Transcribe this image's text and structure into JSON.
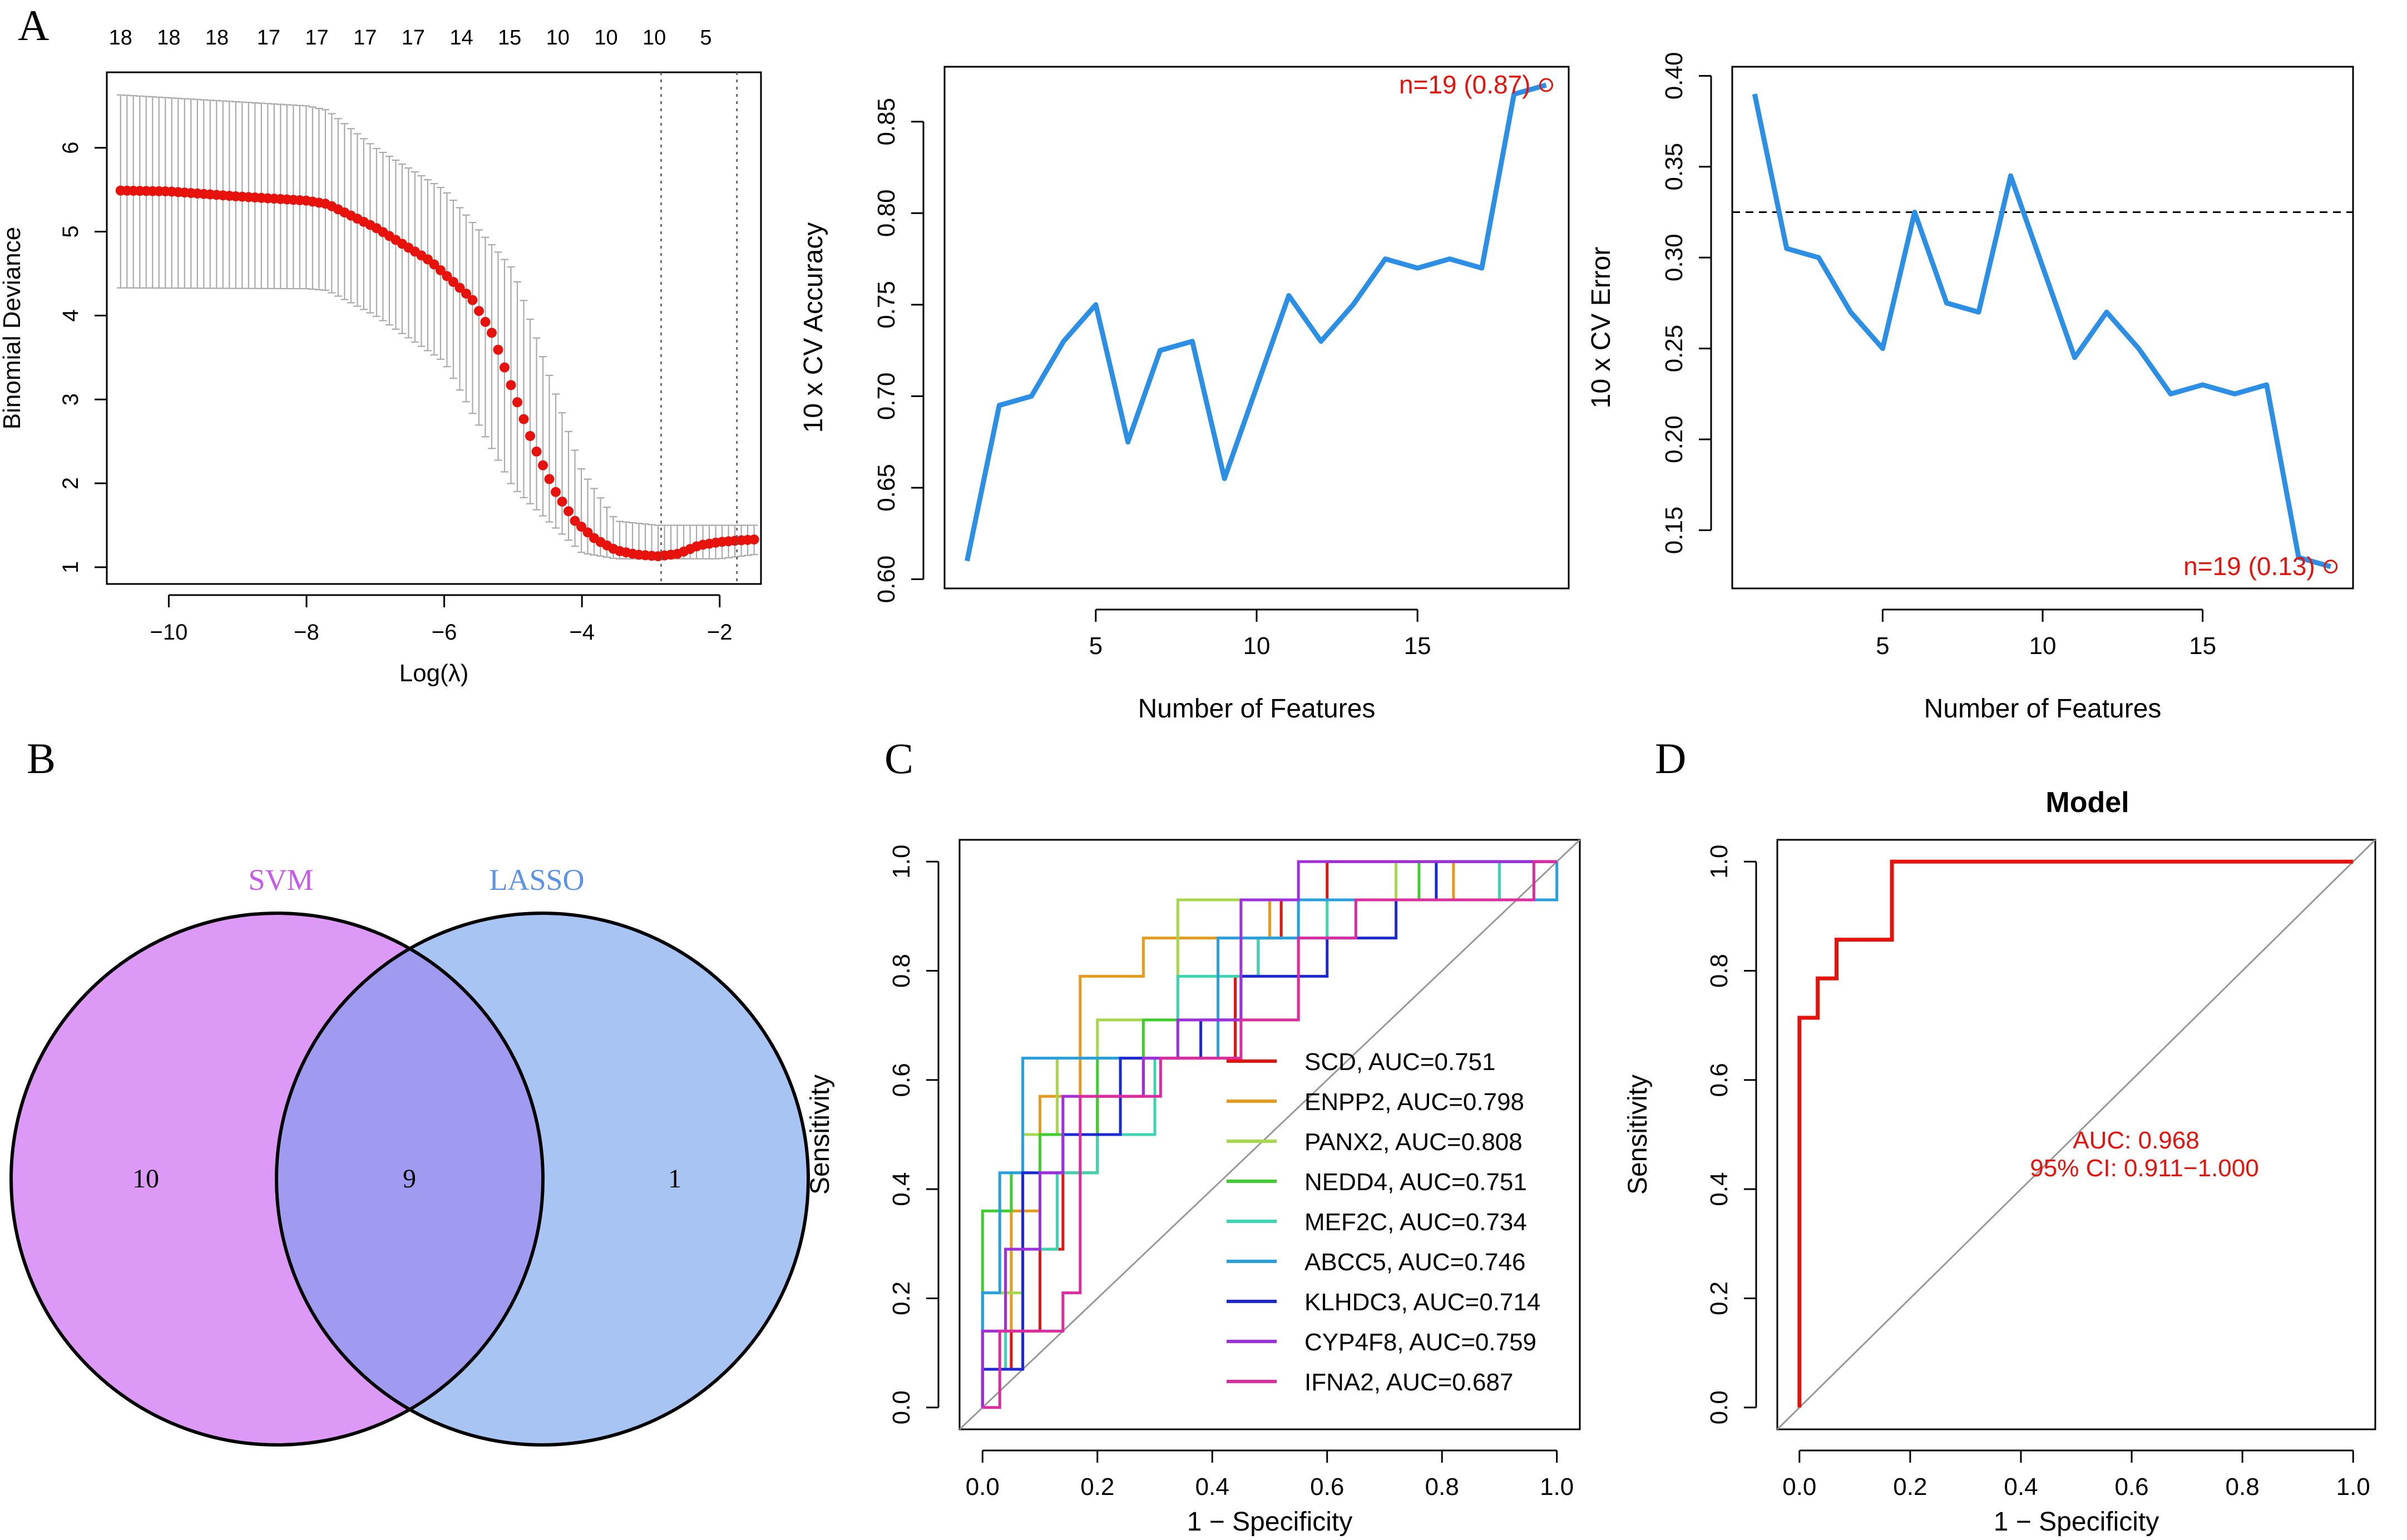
{
  "figure": {
    "panel_labels": {
      "a": "A",
      "b": "B",
      "c": "C",
      "d": "D"
    }
  },
  "colors": {
    "red": "#e8120c",
    "blue": "#2c8fe6",
    "axis": "#000000",
    "grey": "#aaaaaa",
    "svm_fill": "#dd99f6",
    "lasso_fill": "#a8c4f2",
    "overlap_fill": "#a09af0",
    "svm_text": "#c55be8",
    "lasso_text": "#5b93e6"
  },
  "chart_data": [
    {
      "id": "lasso",
      "type": "scatter",
      "title": "",
      "xlabel": "Log(λ)",
      "ylabel": "Binomial Deviance",
      "xlim": [
        -10.9,
        -1.4
      ],
      "ylim": [
        0.8,
        6.9
      ],
      "xticks": [
        -10,
        -8,
        -6,
        -4,
        -2
      ],
      "yticks": [
        1,
        2,
        3,
        4,
        5,
        6
      ],
      "top_axis": {
        "x": [
          -10.7,
          -10.0,
          -9.3,
          -8.55,
          -7.85,
          -7.15,
          -6.45,
          -5.75,
          -5.05,
          -4.35,
          -3.65,
          -2.95,
          -2.2
        ],
        "labels": [
          "18",
          "18",
          "18",
          "17",
          "17",
          "17",
          "17",
          "14",
          "15",
          "10",
          "10",
          "10",
          "5"
        ]
      },
      "vlines": [
        -2.85,
        -1.75
      ],
      "curve_x": [
        -10.7,
        -10.0,
        -9.0,
        -8.0,
        -7.7,
        -7.0,
        -6.2,
        -5.6,
        -5.3,
        -5.0,
        -4.7,
        -4.4,
        -4.1,
        -3.8,
        -3.5,
        -3.2,
        -2.9,
        -2.6,
        -2.3,
        -2.0,
        -1.7,
        -1.5
      ],
      "curve_y": [
        5.49,
        5.48,
        5.42,
        5.37,
        5.33,
        5.05,
        4.65,
        4.2,
        3.78,
        3.1,
        2.45,
        1.92,
        1.55,
        1.33,
        1.2,
        1.15,
        1.13,
        1.16,
        1.26,
        1.3,
        1.32,
        1.33
      ],
      "err_x": [
        -10.7,
        -8.0,
        -7.7,
        -7.0,
        -6.0,
        -5.0,
        -4.0,
        -3.5,
        -2.9,
        -2.0,
        -1.5
      ],
      "err_upper": [
        6.63,
        6.5,
        6.45,
        6.0,
        5.5,
        4.55,
        2.15,
        1.55,
        1.5,
        1.5,
        1.5
      ],
      "err_lower": [
        4.33,
        4.32,
        4.3,
        4.0,
        3.45,
        1.95,
        1.17,
        1.1,
        1.1,
        1.1,
        1.15
      ],
      "n_points": 100
    },
    {
      "id": "svm_accuracy",
      "type": "line",
      "xlabel": "Number of Features",
      "ylabel": "10 x CV Accuracy",
      "xlim": [
        0.3,
        19.7
      ],
      "ylim": [
        0.595,
        0.88
      ],
      "xticks": [
        5,
        10,
        15
      ],
      "yticks": [
        0.6,
        0.65,
        0.7,
        0.75,
        0.8,
        0.85
      ],
      "ytick_labels": [
        "0.60",
        "0.65",
        "0.70",
        "0.75",
        "0.80",
        "0.85"
      ],
      "x": [
        1,
        2,
        3,
        4,
        5,
        6,
        7,
        8,
        9,
        10,
        11,
        12,
        13,
        14,
        15,
        16,
        17,
        18,
        19
      ],
      "y": [
        0.61,
        0.695,
        0.7,
        0.73,
        0.75,
        0.675,
        0.725,
        0.73,
        0.655,
        0.705,
        0.755,
        0.73,
        0.75,
        0.775,
        0.77,
        0.775,
        0.77,
        0.865,
        0.87
      ],
      "annotation": "n=19 (0.87)",
      "marker": {
        "x": 19,
        "y": 0.87
      }
    },
    {
      "id": "svm_error",
      "type": "line",
      "xlabel": "Number of Features",
      "ylabel": "10 x CV Error",
      "xlim": [
        0.3,
        19.7
      ],
      "ylim": [
        0.118,
        0.405
      ],
      "xticks": [
        5,
        10,
        15
      ],
      "yticks": [
        0.15,
        0.2,
        0.25,
        0.3,
        0.35,
        0.4
      ],
      "ytick_labels": [
        "0.15",
        "0.20",
        "0.25",
        "0.30",
        "0.35",
        "0.40"
      ],
      "x": [
        1,
        2,
        3,
        4,
        5,
        6,
        7,
        8,
        9,
        10,
        11,
        12,
        13,
        14,
        15,
        16,
        17,
        18,
        19
      ],
      "y": [
        0.39,
        0.305,
        0.3,
        0.27,
        0.25,
        0.325,
        0.275,
        0.27,
        0.345,
        0.295,
        0.245,
        0.27,
        0.25,
        0.225,
        0.23,
        0.225,
        0.23,
        0.135,
        0.13
      ],
      "hline": 0.325,
      "annotation": "n=19 (0.13)",
      "marker": {
        "x": 19,
        "y": 0.13
      }
    },
    {
      "id": "venn",
      "type": "venn",
      "sets": [
        {
          "name": "SVM",
          "only": "10"
        },
        {
          "name": "LASSO",
          "only": "1"
        }
      ],
      "intersection": "9"
    },
    {
      "id": "roc_genes",
      "type": "line",
      "xlabel": "1 − Specificity",
      "ylabel": "Sensitivity",
      "xlim": [
        -0.04,
        1.04
      ],
      "ylim": [
        -0.04,
        1.04
      ],
      "xticks": [
        0,
        0.2,
        0.4,
        0.6,
        0.8,
        1.0
      ],
      "xtick_labels": [
        "0.0",
        "0.2",
        "0.4",
        "0.6",
        "0.8",
        "1.0"
      ],
      "yticks": [
        0,
        0.2,
        0.4,
        0.6,
        0.8,
        1.0
      ],
      "ytick_labels": [
        "0.0",
        "0.2",
        "0.4",
        "0.6",
        "0.8",
        "1.0"
      ],
      "series": [
        {
          "name": "SCD, AUC=0.751",
          "color": "#e8120c",
          "steps": [
            [
              0,
              0
            ],
            [
              0,
              0.07
            ],
            [
              0.05,
              0.07
            ],
            [
              0.05,
              0.14
            ],
            [
              0.1,
              0.14
            ],
            [
              0.1,
              0.29
            ],
            [
              0.14,
              0.29
            ],
            [
              0.14,
              0.43
            ],
            [
              0.2,
              0.43
            ],
            [
              0.2,
              0.57
            ],
            [
              0.28,
              0.57
            ],
            [
              0.28,
              0.64
            ],
            [
              0.44,
              0.64
            ],
            [
              0.44,
              0.79
            ],
            [
              0.48,
              0.79
            ],
            [
              0.48,
              0.86
            ],
            [
              0.52,
              0.86
            ],
            [
              0.52,
              0.93
            ],
            [
              0.6,
              0.93
            ],
            [
              0.6,
              1.0
            ],
            [
              1,
              1.0
            ]
          ]
        },
        {
          "name": "ENPP2, AUC=0.798",
          "color": "#e89a1a",
          "steps": [
            [
              0,
              0
            ],
            [
              0,
              0.14
            ],
            [
              0.05,
              0.14
            ],
            [
              0.05,
              0.36
            ],
            [
              0.1,
              0.36
            ],
            [
              0.1,
              0.57
            ],
            [
              0.17,
              0.57
            ],
            [
              0.17,
              0.79
            ],
            [
              0.28,
              0.79
            ],
            [
              0.28,
              0.86
            ],
            [
              0.5,
              0.86
            ],
            [
              0.5,
              0.93
            ],
            [
              0.82,
              0.93
            ],
            [
              0.82,
              1.0
            ],
            [
              1,
              1.0
            ]
          ]
        },
        {
          "name": "PANX2, AUC=0.808",
          "color": "#a6d84a",
          "steps": [
            [
              0,
              0
            ],
            [
              0,
              0.21
            ],
            [
              0.07,
              0.21
            ],
            [
              0.07,
              0.5
            ],
            [
              0.13,
              0.5
            ],
            [
              0.13,
              0.64
            ],
            [
              0.2,
              0.64
            ],
            [
              0.2,
              0.71
            ],
            [
              0.34,
              0.71
            ],
            [
              0.34,
              0.93
            ],
            [
              0.72,
              0.93
            ],
            [
              0.72,
              1.0
            ],
            [
              1,
              1.0
            ]
          ]
        },
        {
          "name": "NEDD4, AUC=0.751",
          "color": "#3ecf2e",
          "steps": [
            [
              0,
              0
            ],
            [
              0,
              0.36
            ],
            [
              0.05,
              0.36
            ],
            [
              0.05,
              0.43
            ],
            [
              0.1,
              0.43
            ],
            [
              0.1,
              0.5
            ],
            [
              0.2,
              0.5
            ],
            [
              0.2,
              0.64
            ],
            [
              0.28,
              0.64
            ],
            [
              0.28,
              0.71
            ],
            [
              0.55,
              0.71
            ],
            [
              0.55,
              0.93
            ],
            [
              0.76,
              0.93
            ],
            [
              0.76,
              1.0
            ],
            [
              1,
              1.0
            ]
          ]
        },
        {
          "name": "MEF2C, AUC=0.734",
          "color": "#3ad6b0",
          "steps": [
            [
              0,
              0
            ],
            [
              0,
              0.07
            ],
            [
              0.04,
              0.07
            ],
            [
              0.04,
              0.29
            ],
            [
              0.13,
              0.29
            ],
            [
              0.13,
              0.43
            ],
            [
              0.2,
              0.43
            ],
            [
              0.2,
              0.5
            ],
            [
              0.3,
              0.5
            ],
            [
              0.3,
              0.64
            ],
            [
              0.34,
              0.64
            ],
            [
              0.34,
              0.79
            ],
            [
              0.48,
              0.79
            ],
            [
              0.48,
              0.86
            ],
            [
              0.6,
              0.86
            ],
            [
              0.6,
              0.93
            ],
            [
              0.9,
              0.93
            ],
            [
              0.9,
              1.0
            ],
            [
              1,
              1.0
            ]
          ]
        },
        {
          "name": "ABCC5, AUC=0.746",
          "color": "#26a0e0",
          "steps": [
            [
              0,
              0
            ],
            [
              0,
              0.21
            ],
            [
              0.03,
              0.21
            ],
            [
              0.03,
              0.43
            ],
            [
              0.07,
              0.43
            ],
            [
              0.07,
              0.64
            ],
            [
              0.41,
              0.64
            ],
            [
              0.41,
              0.86
            ],
            [
              0.55,
              0.86
            ],
            [
              0.55,
              0.93
            ],
            [
              1,
              0.93
            ],
            [
              1,
              1.0
            ]
          ]
        },
        {
          "name": "KLHDC3, AUC=0.714",
          "color": "#1c28d8",
          "steps": [
            [
              0,
              0
            ],
            [
              0,
              0.07
            ],
            [
              0.07,
              0.07
            ],
            [
              0.07,
              0.43
            ],
            [
              0.14,
              0.43
            ],
            [
              0.14,
              0.5
            ],
            [
              0.24,
              0.5
            ],
            [
              0.24,
              0.64
            ],
            [
              0.38,
              0.64
            ],
            [
              0.38,
              0.71
            ],
            [
              0.45,
              0.71
            ],
            [
              0.45,
              0.79
            ],
            [
              0.6,
              0.79
            ],
            [
              0.6,
              0.86
            ],
            [
              0.72,
              0.86
            ],
            [
              0.72,
              0.93
            ],
            [
              0.79,
              0.93
            ],
            [
              0.79,
              1.0
            ],
            [
              1,
              1.0
            ]
          ]
        },
        {
          "name": "CYP4F8, AUC=0.759",
          "color": "#a02ee0",
          "steps": [
            [
              0,
              0
            ],
            [
              0,
              0.14
            ],
            [
              0.04,
              0.14
            ],
            [
              0.04,
              0.29
            ],
            [
              0.1,
              0.29
            ],
            [
              0.1,
              0.43
            ],
            [
              0.14,
              0.43
            ],
            [
              0.14,
              0.57
            ],
            [
              0.28,
              0.57
            ],
            [
              0.28,
              0.64
            ],
            [
              0.34,
              0.64
            ],
            [
              0.34,
              0.71
            ],
            [
              0.45,
              0.71
            ],
            [
              0.45,
              0.93
            ],
            [
              0.55,
              0.93
            ],
            [
              0.55,
              1.0
            ],
            [
              1,
              1.0
            ]
          ]
        },
        {
          "name": "IFNA2, AUC=0.687",
          "color": "#e02aa0",
          "steps": [
            [
              0,
              0
            ],
            [
              0.03,
              0
            ],
            [
              0.03,
              0.14
            ],
            [
              0.14,
              0.14
            ],
            [
              0.14,
              0.21
            ],
            [
              0.17,
              0.21
            ],
            [
              0.17,
              0.57
            ],
            [
              0.31,
              0.57
            ],
            [
              0.31,
              0.64
            ],
            [
              0.45,
              0.64
            ],
            [
              0.45,
              0.71
            ],
            [
              0.55,
              0.71
            ],
            [
              0.55,
              0.86
            ],
            [
              0.65,
              0.86
            ],
            [
              0.65,
              0.93
            ],
            [
              0.96,
              0.93
            ],
            [
              0.96,
              1.0
            ],
            [
              1,
              1.0
            ]
          ]
        }
      ]
    },
    {
      "id": "roc_model",
      "type": "line",
      "title": "Model",
      "xlabel": "1 − Specificity",
      "ylabel": "Sensitivity",
      "xlim": [
        -0.04,
        1.04
      ],
      "ylim": [
        -0.04,
        1.04
      ],
      "xticks": [
        0,
        0.2,
        0.4,
        0.6,
        0.8,
        1.0
      ],
      "xtick_labels": [
        "0.0",
        "0.2",
        "0.4",
        "0.6",
        "0.8",
        "1.0"
      ],
      "yticks": [
        0,
        0.2,
        0.4,
        0.6,
        0.8,
        1.0
      ],
      "ytick_labels": [
        "0.0",
        "0.2",
        "0.4",
        "0.6",
        "0.8",
        "1.0"
      ],
      "steps": [
        [
          0,
          0
        ],
        [
          0,
          0.714
        ],
        [
          0.033,
          0.714
        ],
        [
          0.033,
          0.786
        ],
        [
          0.067,
          0.786
        ],
        [
          0.067,
          0.857
        ],
        [
          0.167,
          0.857
        ],
        [
          0.167,
          1.0
        ],
        [
          1,
          1.0
        ]
      ],
      "annotation_auc": "AUC: 0.968",
      "annotation_ci": "95% CI: 0.911−1.000"
    }
  ]
}
